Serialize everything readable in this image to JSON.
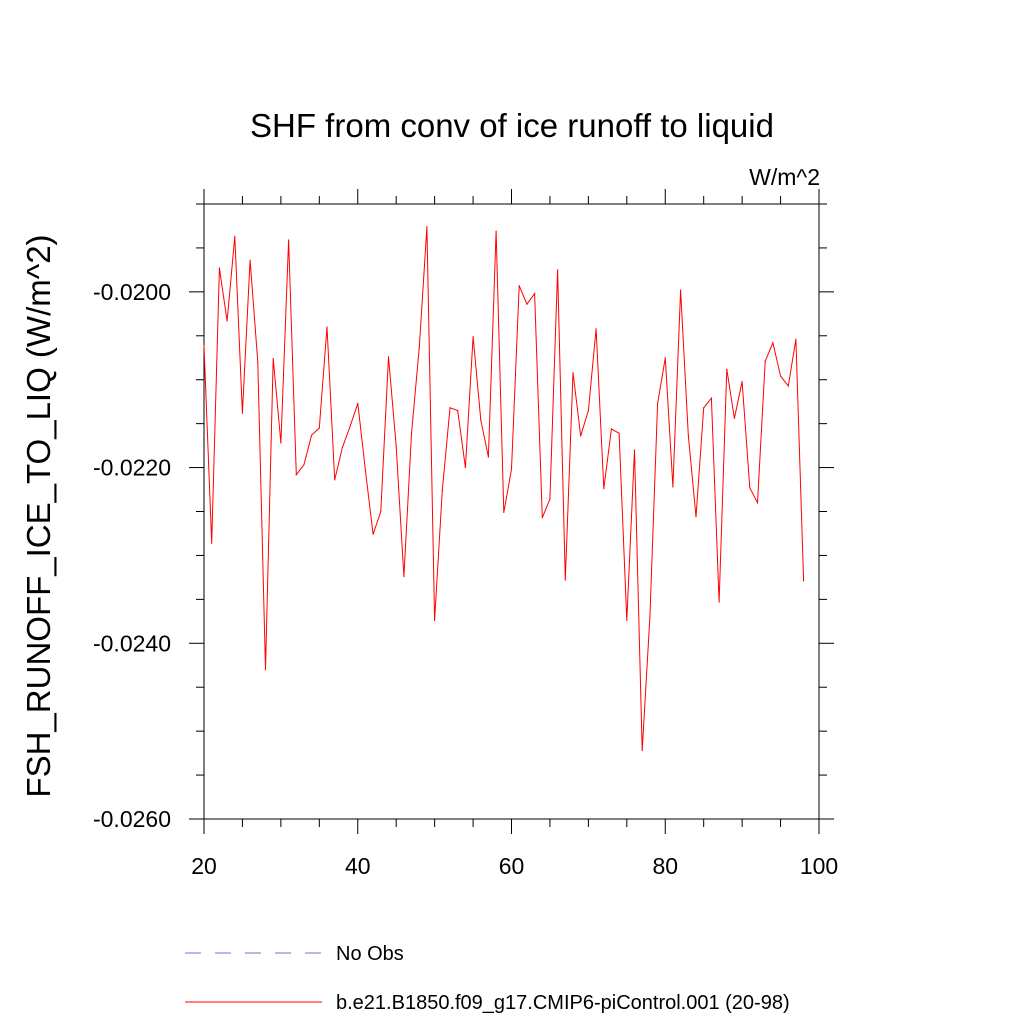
{
  "chart_data": {
    "type": "line",
    "title": "SHF from conv of ice runoff to liquid",
    "units": "W/m^2",
    "xlabel": "",
    "ylabel": "FSH_RUNOFF_ICE_TO_LIQ  (W/m^2)",
    "xlim": [
      20,
      100
    ],
    "ylim": [
      -0.026,
      -0.019
    ],
    "xticks": [
      20,
      40,
      60,
      80,
      100
    ],
    "xtick_labels": [
      "20",
      "40",
      "60",
      "80",
      "100"
    ],
    "yticks": [
      -0.026,
      -0.024,
      -0.022,
      -0.02
    ],
    "ytick_labels": [
      "-0.0260",
      "-0.0240",
      "-0.0220",
      "-0.0200"
    ],
    "series": [
      {
        "name": "b.e21.B1850.f09_g17.CMIP6-piControl.001 (20-98)",
        "color": "#ff0000",
        "x": [
          20,
          21,
          22,
          23,
          24,
          25,
          26,
          27,
          28,
          29,
          30,
          31,
          32,
          33,
          34,
          35,
          36,
          37,
          38,
          39,
          40,
          41,
          42,
          43,
          44,
          45,
          46,
          47,
          48,
          49,
          50,
          51,
          52,
          53,
          54,
          55,
          56,
          57,
          58,
          59,
          60,
          61,
          62,
          63,
          64,
          65,
          66,
          67,
          68,
          69,
          70,
          71,
          72,
          73,
          74,
          75,
          76,
          77,
          78,
          79,
          80,
          81,
          82,
          83,
          84,
          85,
          86,
          87,
          88,
          89,
          90,
          91,
          92,
          93,
          94,
          95,
          96,
          97,
          98
        ],
        "values": [
          -0.02061,
          -0.02286,
          -0.01973,
          -0.02033,
          -0.01937,
          -0.02138,
          -0.01964,
          -0.0208,
          -0.0243,
          -0.02076,
          -0.02172,
          -0.01941,
          -0.02208,
          -0.02197,
          -0.02163,
          -0.02155,
          -0.0204,
          -0.02214,
          -0.02177,
          -0.02153,
          -0.02127,
          -0.02203,
          -0.02276,
          -0.0225,
          -0.02074,
          -0.02176,
          -0.02324,
          -0.0216,
          -0.02063,
          -0.01926,
          -0.02374,
          -0.02226,
          -0.02132,
          -0.02135,
          -0.022,
          -0.02051,
          -0.02146,
          -0.02188,
          -0.01931,
          -0.02251,
          -0.02202,
          -0.01993,
          -0.02014,
          -0.02002,
          -0.02257,
          -0.02236,
          -0.01975,
          -0.02328,
          -0.02092,
          -0.02164,
          -0.02135,
          -0.02042,
          -0.02224,
          -0.02156,
          -0.02161,
          -0.02374,
          -0.0218,
          -0.02522,
          -0.0237,
          -0.02127,
          -0.02075,
          -0.02222,
          -0.01998,
          -0.02163,
          -0.02256,
          -0.02132,
          -0.02121,
          -0.02353,
          -0.02088,
          -0.02144,
          -0.02102,
          -0.02223,
          -0.0224,
          -0.02079,
          -0.02058,
          -0.02096,
          -0.02107,
          -0.02054,
          -0.02329
        ]
      }
    ],
    "legend": [
      {
        "label": "No Obs",
        "color": "#7070c8",
        "style": "dashed"
      },
      {
        "label": "b.e21.B1850.f09_g17.CMIP6-piControl.001 (20-98)",
        "color": "#ff0000",
        "style": "solid"
      }
    ],
    "legend_position": "bottom-left"
  }
}
